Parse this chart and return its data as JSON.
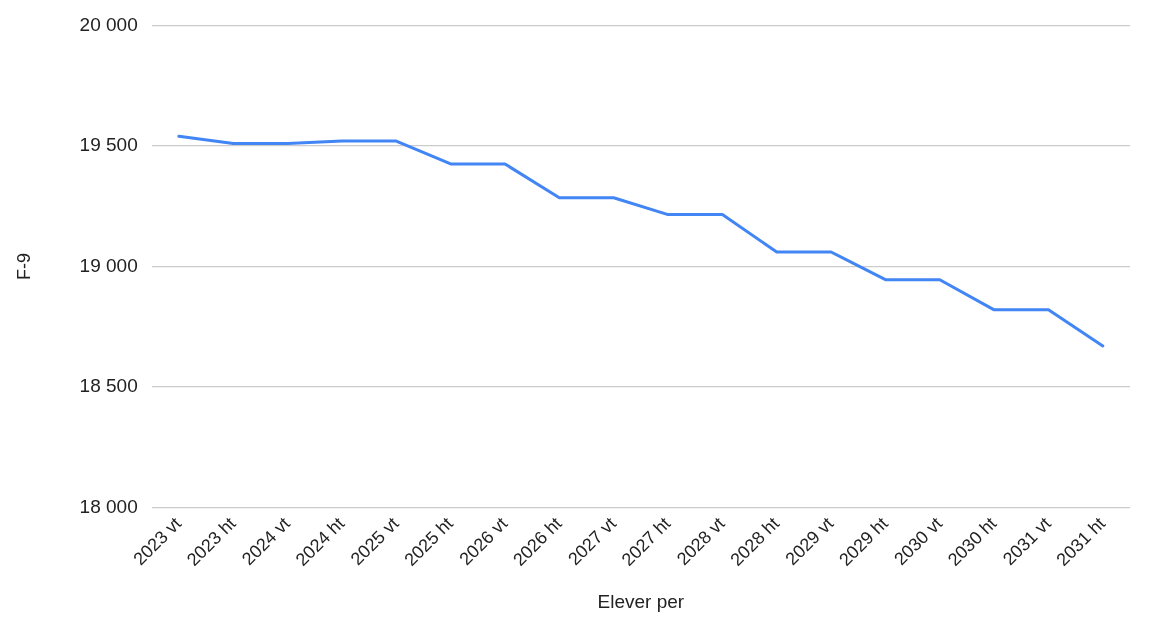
{
  "chart_data": {
    "type": "line",
    "xlabel": "Elever per",
    "ylabel": "F-9",
    "categories": [
      "2023 vt",
      "2023 ht",
      "2024 vt",
      "2024 ht",
      "2025 vt",
      "2025 ht",
      "2026 vt",
      "2026 ht",
      "2027 vt",
      "2027 ht",
      "2028 vt",
      "2028 ht",
      "2029 vt",
      "2029 ht",
      "2030 vt",
      "2030 ht",
      "2031 vt",
      "2031 ht"
    ],
    "series": [
      {
        "color": "#4285f4",
        "values": [
          19540,
          19510,
          19510,
          19520,
          19520,
          19425,
          19425,
          19285,
          19285,
          19215,
          19215,
          19060,
          19060,
          18945,
          18945,
          18820,
          18820,
          18670
        ]
      }
    ],
    "ylim": [
      18000,
      20000
    ],
    "yticks": [
      {
        "value": 18000,
        "label": "18 000"
      },
      {
        "value": 18500,
        "label": "18 500"
      },
      {
        "value": 19000,
        "label": "19 000"
      },
      {
        "value": 19500,
        "label": "19 500"
      },
      {
        "value": 20000,
        "label": "20 000"
      }
    ],
    "grid": "y",
    "marker": "none",
    "line_style": "solid"
  }
}
